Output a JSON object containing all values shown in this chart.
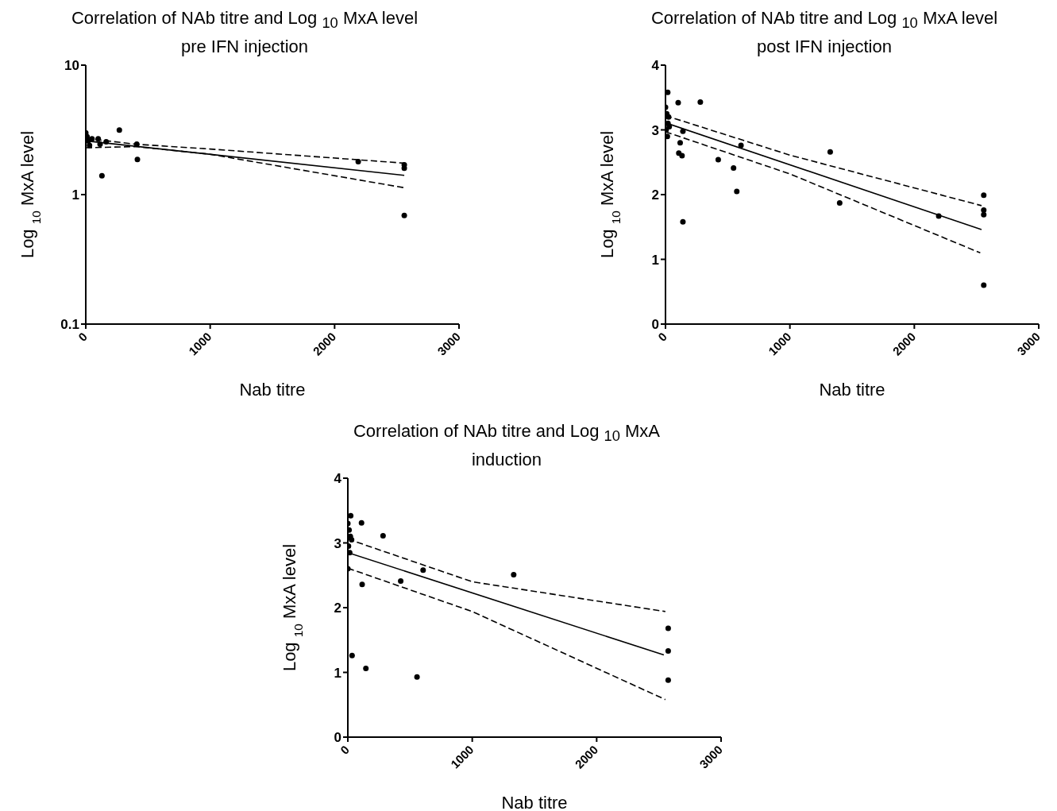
{
  "chart_data": [
    {
      "type": "scatter",
      "title": "Correlation of NAb titre and Log $_{10}$ MxA level pre IFN injection",
      "xlabel": "Nab titre",
      "ylabel": "Log $_{10}$ MxA level",
      "log": "y",
      "xlim": [
        0,
        3000
      ],
      "xticks": [
        0,
        1000,
        2000,
        3000
      ],
      "ylim": [
        0.1,
        10
      ],
      "yticks": [
        0.1,
        1,
        10
      ],
      "marker": "circle",
      "series": [
        {
          "color": "#000000",
          "x": [
            0,
            10,
            20,
            30,
            50,
            100,
            115,
            130,
            164,
            270,
            410,
            415,
            2190,
            2560,
            2560,
            2560
          ],
          "values": [
            3.0,
            2.8,
            2.6,
            2.4,
            2.7,
            2.7,
            2.45,
            1.4,
            2.56,
            3.15,
            2.45,
            1.87,
            1.8,
            1.6,
            1.7,
            0.69
          ]
        },
        {
          "type": "line",
          "color": "#000000",
          "line_style": "solid",
          "marker": "none",
          "x": [
            0,
            2560
          ],
          "values": [
            2.6,
            1.41
          ]
        },
        {
          "type": "line",
          "color": "#000000",
          "line_style": "dashed",
          "marker": "none",
          "x": [
            0,
            400,
            1000,
            2560
          ],
          "values": [
            2.72,
            2.45,
            2.25,
            1.75
          ]
        },
        {
          "type": "line",
          "color": "#000000",
          "line_style": "dashed",
          "marker": "none",
          "x": [
            0,
            400,
            1000,
            2560
          ],
          "values": [
            2.3,
            2.35,
            2.05,
            1.13
          ]
        }
      ]
    },
    {
      "type": "scatter",
      "title": "Correlation of NAb titre and Log $_{10}$ MxA level post IFN injection",
      "xlabel": "Nab titre",
      "ylabel": "Log $_{10}$ MxA level",
      "xlim": [
        0,
        3000
      ],
      "xticks": [
        0,
        1000,
        2000,
        3000
      ],
      "ylim": [
        0,
        4
      ],
      "yticks": [
        0,
        1,
        2,
        3,
        4
      ],
      "marker": "circle",
      "series": [
        {
          "color": "#000000",
          "x": [
            18,
            0,
            10,
            20,
            5,
            15,
            25,
            30,
            102,
            280,
            140,
            118,
            107,
            133,
            140,
            424,
            547,
            573,
            607,
            1324,
            1400,
            2196,
            2558,
            2558,
            2558,
            2558
          ],
          "values": [
            3.58,
            3.35,
            3.25,
            3.1,
            3.0,
            2.9,
            3.2,
            3.05,
            3.42,
            3.43,
            2.98,
            2.8,
            2.64,
            2.6,
            1.58,
            2.54,
            2.41,
            2.05,
            2.76,
            2.66,
            1.87,
            1.67,
            1.99,
            1.76,
            1.69,
            0.6
          ]
        },
        {
          "type": "line",
          "color": "#000000",
          "line_style": "solid",
          "marker": "none",
          "x": [
            0,
            2540
          ],
          "values": [
            3.11,
            1.46
          ]
        },
        {
          "type": "line",
          "color": "#000000",
          "line_style": "dashed",
          "marker": "none",
          "x": [
            0,
            1000,
            2540
          ],
          "values": [
            3.22,
            2.61,
            1.83
          ]
        },
        {
          "type": "line",
          "color": "#000000",
          "line_style": "dashed",
          "marker": "none",
          "x": [
            0,
            1000,
            2530
          ],
          "values": [
            2.97,
            2.32,
            1.1
          ]
        }
      ]
    },
    {
      "type": "scatter",
      "title": "Correlation of NAb titre and Log $_{10}$ MxA induction",
      "xlabel": "Nab titre",
      "ylabel": "Log $_{10}$ MxA level",
      "xlim": [
        0,
        3000
      ],
      "xticks": [
        0,
        1000,
        2000,
        3000
      ],
      "ylim": [
        0,
        4
      ],
      "yticks": [
        0,
        1,
        2,
        3,
        4
      ],
      "marker": "circle",
      "series": [
        {
          "color": "#000000",
          "x": [
            23,
            0,
            10,
            20,
            30,
            5,
            15,
            0,
            110,
            283,
            115,
            34,
            145,
            425,
            605,
            556,
            1333,
            2575,
            2575,
            2575
          ],
          "values": [
            3.42,
            3.3,
            3.2,
            3.1,
            3.05,
            2.95,
            2.85,
            2.6,
            3.31,
            3.11,
            2.36,
            1.26,
            1.06,
            2.41,
            2.58,
            0.93,
            2.51,
            1.68,
            1.33,
            0.88
          ]
        },
        {
          "type": "line",
          "color": "#000000",
          "line_style": "solid",
          "marker": "none",
          "x": [
            0,
            2540
          ],
          "values": [
            2.85,
            1.27
          ]
        },
        {
          "type": "line",
          "color": "#000000",
          "line_style": "dashed",
          "marker": "none",
          "x": [
            0,
            1000,
            2552
          ],
          "values": [
            3.06,
            2.4,
            1.94
          ]
        },
        {
          "type": "line",
          "color": "#000000",
          "line_style": "dashed",
          "marker": "none",
          "x": [
            0,
            1000,
            2552
          ],
          "values": [
            2.61,
            1.94,
            0.58
          ]
        }
      ]
    }
  ]
}
